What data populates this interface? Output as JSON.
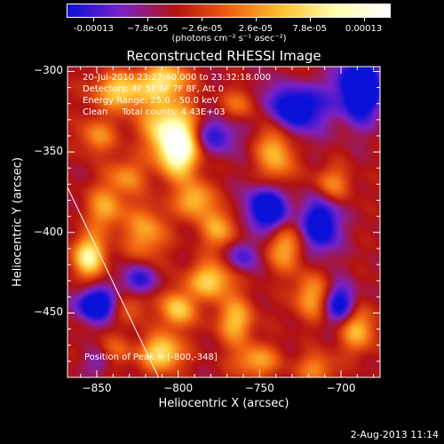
{
  "colorbar": {
    "tick_labels": [
      "-0.00013",
      "−7.8e-05",
      "−2.6e-05",
      "2.6e-05",
      "7.8e-05",
      "0.00013"
    ],
    "units": "(photons cm⁻² s⁻¹ asec⁻²)",
    "colors": [
      "#0a10d8",
      "#7a22c8",
      "#b21212",
      "#f06010",
      "#ffc030",
      "#ffffb0",
      "#ffffff"
    ]
  },
  "chart_data": {
    "type": "heatmap",
    "title": "Reconstructed RHESSI Image",
    "xlabel": "Heliocentric X (arcsec)",
    "ylabel": "Heliocentric Y (arcsec)",
    "xlim": [
      -868,
      -676
    ],
    "ylim": [
      -490,
      -297
    ],
    "x_ticks": [
      -850,
      -800,
      -750,
      -700
    ],
    "y_ticks": [
      -300,
      -350,
      -400,
      -450
    ],
    "x_tick_labels": [
      "−850",
      "−800",
      "−750",
      "−700"
    ],
    "y_tick_labels": [
      "−300",
      "−350",
      "−400",
      "−450"
    ],
    "color_scale": {
      "min": -0.00013,
      "max": 0.00013
    },
    "annotations": [
      "20-Jul-2010 23:27:40.000 to 23:32:18.000",
      "Detectors: 4F 5F 6F 7F 8F, Att 0",
      "Energy Range: 25.0 - 50.0 keV",
      "Clean     Total counts: 4.43E+03"
    ],
    "peak_label": "Position of Peak = [-800,-348]",
    "peak": {
      "x": -800,
      "y": -348
    },
    "limb_line": [
      [
        -868,
        -372
      ],
      [
        -812,
        -490
      ]
    ],
    "blobs": [
      {
        "x": -800,
        "y": -348,
        "sx": 9,
        "sy": 12,
        "v": 1.3
      },
      {
        "x": -808,
        "y": -332,
        "sx": 12,
        "sy": 12,
        "v": 0.7
      },
      {
        "x": -835,
        "y": -312,
        "sx": 12,
        "sy": 8,
        "v": 0.8
      },
      {
        "x": -808,
        "y": -305,
        "sx": 10,
        "sy": 8,
        "v": 0.8
      },
      {
        "x": -855,
        "y": -415,
        "sx": 7,
        "sy": 9,
        "v": 1.0
      },
      {
        "x": -845,
        "y": -385,
        "sx": 8,
        "sy": 10,
        "v": 0.6
      },
      {
        "x": -790,
        "y": -380,
        "sx": 8,
        "sy": 8,
        "v": 0.7
      },
      {
        "x": -820,
        "y": -400,
        "sx": 9,
        "sy": 12,
        "v": 0.6
      },
      {
        "x": -832,
        "y": -365,
        "sx": 8,
        "sy": 8,
        "v": 0.5
      },
      {
        "x": -775,
        "y": -398,
        "sx": 8,
        "sy": 9,
        "v": 0.6
      },
      {
        "x": -780,
        "y": -430,
        "sx": 10,
        "sy": 8,
        "v": 0.8
      },
      {
        "x": -800,
        "y": -448,
        "sx": 7,
        "sy": 8,
        "v": 0.8
      },
      {
        "x": -810,
        "y": -475,
        "sx": 9,
        "sy": 8,
        "v": 0.9
      },
      {
        "x": -765,
        "y": -455,
        "sx": 8,
        "sy": 10,
        "v": 0.7
      },
      {
        "x": -735,
        "y": -410,
        "sx": 8,
        "sy": 10,
        "v": 0.6
      },
      {
        "x": -718,
        "y": -440,
        "sx": 8,
        "sy": 10,
        "v": 0.6
      },
      {
        "x": -740,
        "y": -350,
        "sx": 8,
        "sy": 15,
        "v": 0.7
      },
      {
        "x": -728,
        "y": -312,
        "sx": 8,
        "sy": 12,
        "v": 0.6
      },
      {
        "x": -705,
        "y": -370,
        "sx": 8,
        "sy": 8,
        "v": 0.5
      },
      {
        "x": -690,
        "y": -460,
        "sx": 8,
        "sy": 10,
        "v": 0.7
      },
      {
        "x": -752,
        "y": -480,
        "sx": 10,
        "sy": 7,
        "v": 0.6
      },
      {
        "x": -830,
        "y": -445,
        "sx": 9,
        "sy": 8,
        "v": 0.4
      },
      {
        "x": -850,
        "y": -340,
        "sx": 8,
        "sy": 8,
        "v": 0.5
      },
      {
        "x": -840,
        "y": -475,
        "sx": 8,
        "sy": 7,
        "v": 0.4
      },
      {
        "x": -715,
        "y": -485,
        "sx": 8,
        "sy": 7,
        "v": 0.5
      },
      {
        "x": -762,
        "y": -320,
        "sx": 8,
        "sy": 7,
        "v": 0.4
      },
      {
        "x": -728,
        "y": -320,
        "sx": 12,
        "sy": 12,
        "v": -1.3
      },
      {
        "x": -688,
        "y": -310,
        "sx": 9,
        "sy": 14,
        "v": -1.2
      },
      {
        "x": -745,
        "y": -385,
        "sx": 9,
        "sy": 10,
        "v": -1.0
      },
      {
        "x": -712,
        "y": -395,
        "sx": 8,
        "sy": 12,
        "v": -0.9
      },
      {
        "x": -850,
        "y": -445,
        "sx": 9,
        "sy": 7,
        "v": -1.0
      },
      {
        "x": -825,
        "y": -430,
        "sx": 8,
        "sy": 7,
        "v": -0.6
      },
      {
        "x": -778,
        "y": -340,
        "sx": 10,
        "sy": 8,
        "v": -0.6
      },
      {
        "x": -700,
        "y": -445,
        "sx": 7,
        "sy": 9,
        "v": -0.8
      },
      {
        "x": -760,
        "y": -415,
        "sx": 7,
        "sy": 7,
        "v": -0.5
      },
      {
        "x": -848,
        "y": -480,
        "sx": 7,
        "sy": 6,
        "v": -0.4
      }
    ]
  },
  "footer": {
    "timestamp": "2-Aug-2013 11:14"
  }
}
